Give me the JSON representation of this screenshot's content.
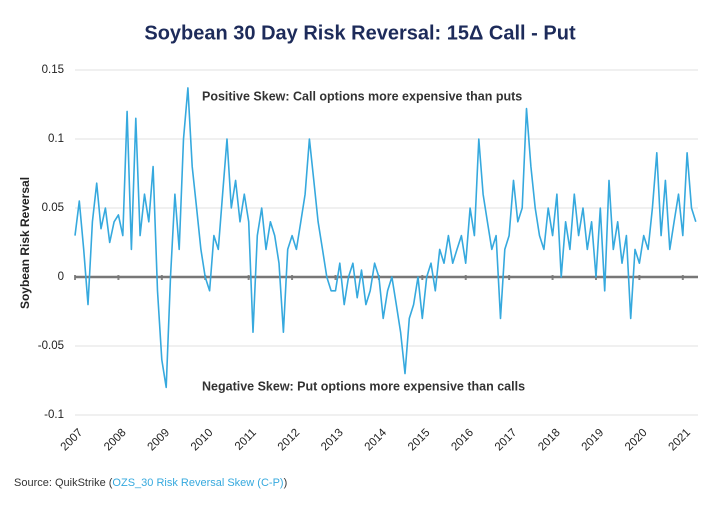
{
  "chart_data": {
    "type": "line",
    "title": "Soybean 30 Day Risk Reversal: 15Δ Call - Put",
    "y_label": "Soybean Risk Reversal",
    "annotations": [
      "Positive Skew: Call options more expensive than puts",
      "Negative Skew: Put options more expensive than calls"
    ],
    "source_prefix": "Source: QuikStrike (",
    "source_link": "OZS_30 Risk Reversal Skew (C-P)",
    "source_suffix": ")",
    "x": [
      2007.0,
      2007.1,
      2007.2,
      2007.3,
      2007.4,
      2007.5,
      2007.6,
      2007.7,
      2007.8,
      2007.9,
      2008.0,
      2008.1,
      2008.2,
      2008.3,
      2008.4,
      2008.5,
      2008.6,
      2008.7,
      2008.8,
      2008.9,
      2009.0,
      2009.1,
      2009.2,
      2009.3,
      2009.4,
      2009.5,
      2009.6,
      2009.7,
      2009.8,
      2009.9,
      2010.0,
      2010.1,
      2010.2,
      2010.3,
      2010.4,
      2010.5,
      2010.6,
      2010.7,
      2010.8,
      2010.9,
      2011.0,
      2011.1,
      2011.2,
      2011.3,
      2011.4,
      2011.5,
      2011.6,
      2011.7,
      2011.8,
      2011.9,
      2012.0,
      2012.1,
      2012.2,
      2012.3,
      2012.4,
      2012.5,
      2012.6,
      2012.7,
      2012.8,
      2012.9,
      2013.0,
      2013.1,
      2013.2,
      2013.3,
      2013.4,
      2013.5,
      2013.6,
      2013.7,
      2013.8,
      2013.9,
      2014.0,
      2014.1,
      2014.2,
      2014.3,
      2014.4,
      2014.5,
      2014.6,
      2014.7,
      2014.8,
      2014.9,
      2015.0,
      2015.1,
      2015.2,
      2015.3,
      2015.4,
      2015.5,
      2015.6,
      2015.7,
      2015.8,
      2015.9,
      2016.0,
      2016.1,
      2016.2,
      2016.3,
      2016.4,
      2016.5,
      2016.6,
      2016.7,
      2016.8,
      2016.9,
      2017.0,
      2017.1,
      2017.2,
      2017.3,
      2017.4,
      2017.5,
      2017.6,
      2017.7,
      2017.8,
      2017.9,
      2018.0,
      2018.1,
      2018.2,
      2018.3,
      2018.4,
      2018.5,
      2018.6,
      2018.7,
      2018.8,
      2018.9,
      2019.0,
      2019.1,
      2019.2,
      2019.3,
      2019.4,
      2019.5,
      2019.6,
      2019.7,
      2019.8,
      2019.9,
      2020.0,
      2020.1,
      2020.2,
      2020.3,
      2020.4,
      2020.5,
      2020.6,
      2020.7,
      2020.8,
      2020.9,
      2021.0,
      2021.1,
      2021.2,
      2021.3
    ],
    "series": [
      {
        "color": "#36a9de",
        "values": [
          0.03,
          0.055,
          0.02,
          -0.02,
          0.04,
          0.068,
          0.035,
          0.05,
          0.025,
          0.04,
          0.045,
          0.03,
          0.12,
          0.02,
          0.115,
          0.03,
          0.06,
          0.04,
          0.08,
          -0.01,
          -0.06,
          -0.08,
          0.0,
          0.06,
          0.02,
          0.1,
          0.137,
          0.08,
          0.05,
          0.02,
          0.0,
          -0.01,
          0.03,
          0.02,
          0.06,
          0.1,
          0.05,
          0.07,
          0.04,
          0.06,
          0.04,
          -0.04,
          0.03,
          0.05,
          0.02,
          0.04,
          0.03,
          0.01,
          -0.04,
          0.02,
          0.03,
          0.02,
          0.04,
          0.06,
          0.1,
          0.07,
          0.04,
          0.02,
          0.0,
          -0.01,
          -0.01,
          0.01,
          -0.02,
          0.0,
          0.01,
          -0.015,
          0.005,
          -0.02,
          -0.01,
          0.01,
          0.0,
          -0.03,
          -0.01,
          0.0,
          -0.02,
          -0.04,
          -0.07,
          -0.03,
          -0.02,
          0.0,
          -0.03,
          0.0,
          0.01,
          -0.01,
          0.02,
          0.01,
          0.03,
          0.01,
          0.02,
          0.03,
          0.01,
          0.05,
          0.03,
          0.1,
          0.06,
          0.04,
          0.02,
          0.03,
          -0.03,
          0.02,
          0.03,
          0.07,
          0.04,
          0.05,
          0.122,
          0.08,
          0.05,
          0.03,
          0.02,
          0.05,
          0.03,
          0.06,
          0.0,
          0.04,
          0.02,
          0.06,
          0.03,
          0.05,
          0.02,
          0.04,
          0.0,
          0.05,
          -0.01,
          0.07,
          0.02,
          0.04,
          0.01,
          0.03,
          -0.03,
          0.02,
          0.01,
          0.03,
          0.02,
          0.05,
          0.09,
          0.03,
          0.07,
          0.02,
          0.04,
          0.06,
          0.03,
          0.09,
          0.05,
          0.04
        ]
      }
    ],
    "xlim": [
      2007,
      2021.35
    ],
    "xticks": [
      2007,
      2008,
      2009,
      2010,
      2011,
      2012,
      2013,
      2014,
      2015,
      2016,
      2017,
      2018,
      2019,
      2020,
      2021
    ],
    "ylim": [
      -0.1,
      0.15
    ],
    "yticks": [
      -0.1,
      -0.05,
      0,
      0.05,
      0.1,
      0.15
    ],
    "grid": true
  }
}
